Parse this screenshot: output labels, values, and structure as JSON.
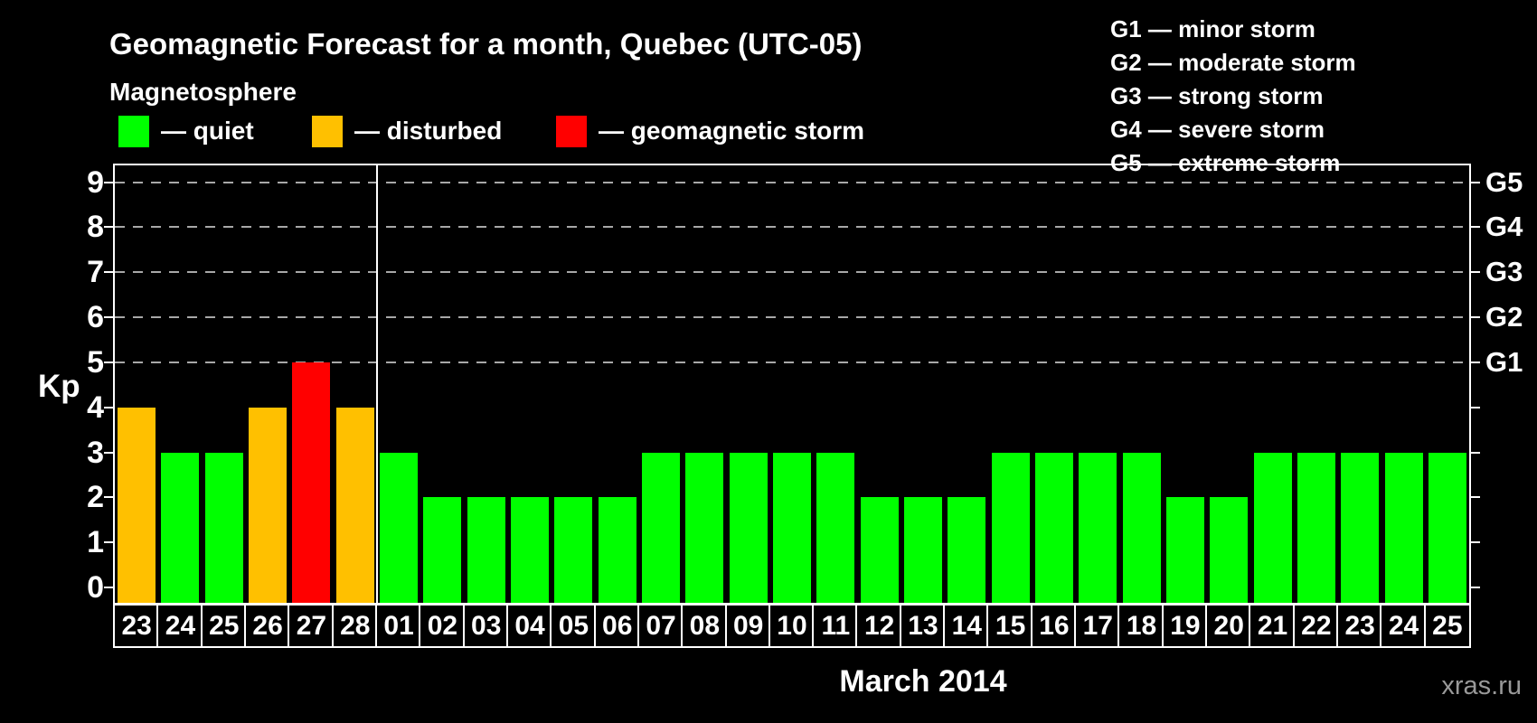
{
  "title": "Geomagnetic Forecast for a month, Quebec (UTC-05)",
  "legend": {
    "heading": "Magnetosphere",
    "items": [
      {
        "key": "quiet",
        "label": "— quiet",
        "color": "#00ff00"
      },
      {
        "key": "disturbed",
        "label": "— disturbed",
        "color": "#ffc000"
      },
      {
        "key": "storm",
        "label": "— geomagnetic storm",
        "color": "#ff0000"
      }
    ]
  },
  "g_scale_legend": {
    "lines": [
      "G1 — minor storm",
      "G2 — moderate storm",
      "G3 — strong storm",
      "G4 — severe storm",
      "G5 — extreme storm"
    ]
  },
  "axes": {
    "left_label": "Kp",
    "left_ticks": [
      0,
      1,
      2,
      3,
      4,
      5,
      6,
      7,
      8,
      9
    ],
    "right_labels": [
      {
        "text": "G1",
        "kp": 5
      },
      {
        "text": "G2",
        "kp": 6
      },
      {
        "text": "G3",
        "kp": 7
      },
      {
        "text": "G4",
        "kp": 8
      },
      {
        "text": "G5",
        "kp": 9
      }
    ]
  },
  "x_axis": {
    "month_label": "March 2014"
  },
  "watermark": "xras.ru",
  "chart_data": {
    "type": "bar",
    "title": "Geomagnetic Forecast for a month, Quebec (UTC-05)",
    "ylabel": "Kp",
    "ylim": [
      0,
      9
    ],
    "grid_levels_kp": [
      5,
      6,
      7,
      8,
      9
    ],
    "legend_position": "top-left",
    "month_boundary_index": 6,
    "status_colors": {
      "quiet": "#00ff00",
      "disturbed": "#ffc000",
      "storm": "#ff0000"
    },
    "categories": [
      "23",
      "24",
      "25",
      "26",
      "27",
      "28",
      "01",
      "02",
      "03",
      "04",
      "05",
      "06",
      "07",
      "08",
      "09",
      "10",
      "11",
      "12",
      "13",
      "14",
      "15",
      "16",
      "17",
      "18",
      "19",
      "20",
      "21",
      "22",
      "23",
      "24",
      "25"
    ],
    "points": [
      {
        "day": "23",
        "kp": 4,
        "status": "disturbed"
      },
      {
        "day": "24",
        "kp": 3,
        "status": "quiet"
      },
      {
        "day": "25",
        "kp": 3,
        "status": "quiet"
      },
      {
        "day": "26",
        "kp": 4,
        "status": "disturbed"
      },
      {
        "day": "27",
        "kp": 5,
        "status": "storm"
      },
      {
        "day": "28",
        "kp": 4,
        "status": "disturbed"
      },
      {
        "day": "01",
        "kp": 3,
        "status": "quiet"
      },
      {
        "day": "02",
        "kp": 2,
        "status": "quiet"
      },
      {
        "day": "03",
        "kp": 2,
        "status": "quiet"
      },
      {
        "day": "04",
        "kp": 2,
        "status": "quiet"
      },
      {
        "day": "05",
        "kp": 2,
        "status": "quiet"
      },
      {
        "day": "06",
        "kp": 2,
        "status": "quiet"
      },
      {
        "day": "07",
        "kp": 3,
        "status": "quiet"
      },
      {
        "day": "08",
        "kp": 3,
        "status": "quiet"
      },
      {
        "day": "09",
        "kp": 3,
        "status": "quiet"
      },
      {
        "day": "10",
        "kp": 3,
        "status": "quiet"
      },
      {
        "day": "11",
        "kp": 3,
        "status": "quiet"
      },
      {
        "day": "12",
        "kp": 2,
        "status": "quiet"
      },
      {
        "day": "13",
        "kp": 2,
        "status": "quiet"
      },
      {
        "day": "14",
        "kp": 2,
        "status": "quiet"
      },
      {
        "day": "15",
        "kp": 3,
        "status": "quiet"
      },
      {
        "day": "16",
        "kp": 3,
        "status": "quiet"
      },
      {
        "day": "17",
        "kp": 3,
        "status": "quiet"
      },
      {
        "day": "18",
        "kp": 3,
        "status": "quiet"
      },
      {
        "day": "19",
        "kp": 2,
        "status": "quiet"
      },
      {
        "day": "20",
        "kp": 2,
        "status": "quiet"
      },
      {
        "day": "21",
        "kp": 3,
        "status": "quiet"
      },
      {
        "day": "22",
        "kp": 3,
        "status": "quiet"
      },
      {
        "day": "23",
        "kp": 3,
        "status": "quiet"
      },
      {
        "day": "24",
        "kp": 3,
        "status": "quiet"
      },
      {
        "day": "25",
        "kp": 3,
        "status": "quiet"
      }
    ]
  }
}
